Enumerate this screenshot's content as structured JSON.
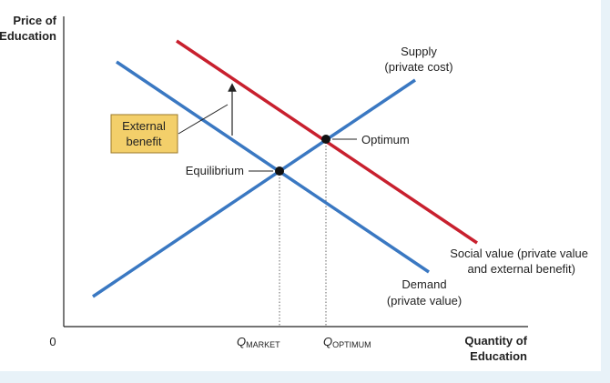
{
  "axes": {
    "y_label_line1": "Price of",
    "y_label_line2": "Education",
    "x_label_line1": "Quantity of",
    "x_label_line2": "Education",
    "origin": "0"
  },
  "curves": {
    "supply_line1": "Supply",
    "supply_line2": "(private cost)",
    "demand_line1": "Demand",
    "demand_line2": "(private value)",
    "social_line1": "Social value (private value",
    "social_line2": "and external benefit)"
  },
  "points": {
    "optimum": "Optimum",
    "equilibrium": "Equilibrium"
  },
  "external_benefit": {
    "line1": "External",
    "line2": "benefit"
  },
  "quantities": {
    "q_market_main": "Q",
    "q_market_sub": "MARKET",
    "q_optimum_main": "Q",
    "q_optimum_sub": "OPTIMUM"
  },
  "colors": {
    "blue": "#3a78c2",
    "red": "#c8202e",
    "box_fill": "#f3cf6a",
    "box_stroke": "#9b7a2a",
    "band": "#e8f2f8"
  }
}
